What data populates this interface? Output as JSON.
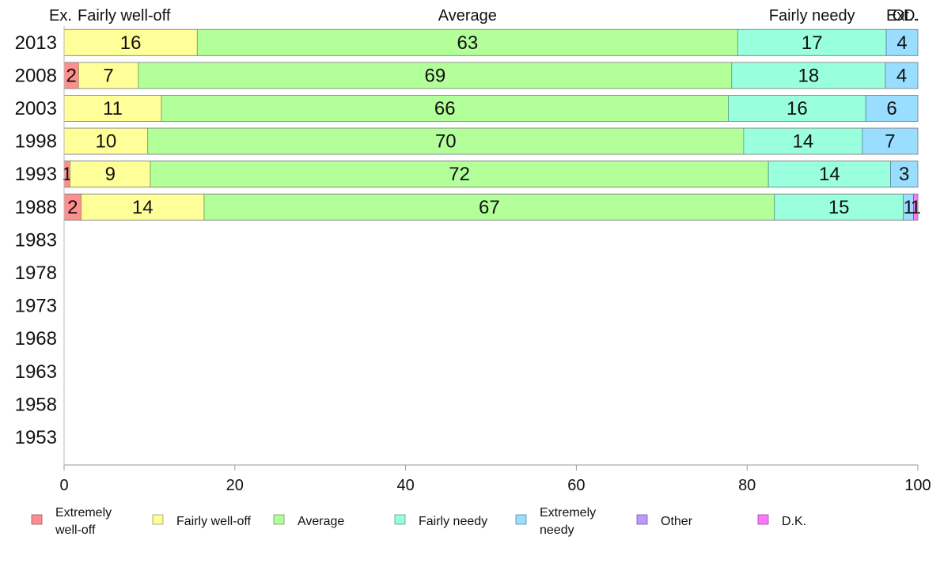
{
  "chart_data": {
    "type": "bar",
    "orientation": "horizontal",
    "stacked": true,
    "categories": [
      "2013",
      "2008",
      "2003",
      "1998",
      "1993",
      "1988",
      "1983",
      "1978",
      "1973",
      "1968",
      "1963",
      "1958",
      "1953"
    ],
    "series": [
      {
        "name": "Extremely well-off",
        "short_label": "Ex.",
        "color": "#ff8f8f",
        "values": [
          0,
          1.7,
          0,
          0,
          0.7,
          2,
          null,
          null,
          null,
          null,
          null,
          null,
          null
        ]
      },
      {
        "name": "Fairly well-off",
        "short_label": "Fairly well-off",
        "color": "#ffff99",
        "values": [
          15.6,
          7,
          11.4,
          9.8,
          9.4,
          14.4,
          null,
          null,
          null,
          null,
          null,
          null,
          null
        ]
      },
      {
        "name": "Average",
        "short_label": "Average",
        "color": "#b3ff99",
        "values": [
          63.3,
          69.5,
          66.4,
          69.8,
          72.4,
          66.8,
          null,
          null,
          null,
          null,
          null,
          null,
          null
        ]
      },
      {
        "name": "Fairly needy",
        "short_label": "Fairly needy",
        "color": "#99ffdd",
        "values": [
          17.4,
          18,
          16.1,
          13.9,
          14.3,
          15.1,
          null,
          null,
          null,
          null,
          null,
          null,
          null
        ]
      },
      {
        "name": "Extremely needy",
        "short_label": "Ex.",
        "color": "#99ddff",
        "values": [
          3.7,
          3.8,
          6.1,
          6.5,
          3.2,
          1.2,
          null,
          null,
          null,
          null,
          null,
          null,
          null
        ]
      },
      {
        "name": "Other",
        "short_label": "Ot..",
        "color": "#bb99ff",
        "values": [
          0,
          0,
          0,
          0,
          0,
          0,
          null,
          null,
          null,
          null,
          null,
          null,
          null
        ]
      },
      {
        "name": "D.K.",
        "short_label": "D.",
        "color": "#ff77ff",
        "values": [
          0,
          0,
          0,
          0,
          0,
          0.5,
          null,
          null,
          null,
          null,
          null,
          null,
          null
        ]
      }
    ],
    "data_labels": [
      [
        "",
        "16",
        "63",
        "17",
        "4",
        "",
        ""
      ],
      [
        "2",
        "7",
        "69",
        "18",
        "4",
        "",
        ""
      ],
      [
        "",
        "11",
        "66",
        "16",
        "6",
        "",
        ""
      ],
      [
        "",
        "10",
        "70",
        "14",
        "7",
        "",
        ""
      ],
      [
        "1",
        "9",
        "72",
        "14",
        "3",
        "",
        ""
      ],
      [
        "2",
        "14",
        "67",
        "15",
        "1",
        "",
        "1"
      ],
      [
        "",
        "",
        "",
        "",
        "",
        "",
        ""
      ],
      [
        "",
        "",
        "",
        "",
        "",
        "",
        ""
      ],
      [
        "",
        "",
        "",
        "",
        "",
        "",
        ""
      ],
      [
        "",
        "",
        "",
        "",
        "",
        "",
        ""
      ],
      [
        "",
        "",
        "",
        "",
        "",
        "",
        ""
      ],
      [
        "",
        "",
        "",
        "",
        "",
        "",
        ""
      ],
      [
        "",
        "",
        "",
        "",
        "",
        "",
        ""
      ]
    ],
    "legend": [
      {
        "lines": [
          "Extremely",
          "well-off"
        ],
        "color": "#ff8f8f"
      },
      {
        "lines": [
          "Fairly well-off"
        ],
        "color": "#ffff99"
      },
      {
        "lines": [
          "Average"
        ],
        "color": "#b3ff99"
      },
      {
        "lines": [
          "Fairly needy"
        ],
        "color": "#99ffdd"
      },
      {
        "lines": [
          "Extremely",
          "needy"
        ],
        "color": "#99ddff"
      },
      {
        "lines": [
          "Other"
        ],
        "color": "#bb99ff"
      },
      {
        "lines": [
          "D.K."
        ],
        "color": "#ff77ff"
      }
    ],
    "legend_position": "bottom",
    "xlim": [
      0,
      100
    ],
    "xticks": [
      0,
      20,
      40,
      60,
      80,
      100
    ],
    "grid": false,
    "title": "",
    "xlabel": "",
    "ylabel": ""
  }
}
